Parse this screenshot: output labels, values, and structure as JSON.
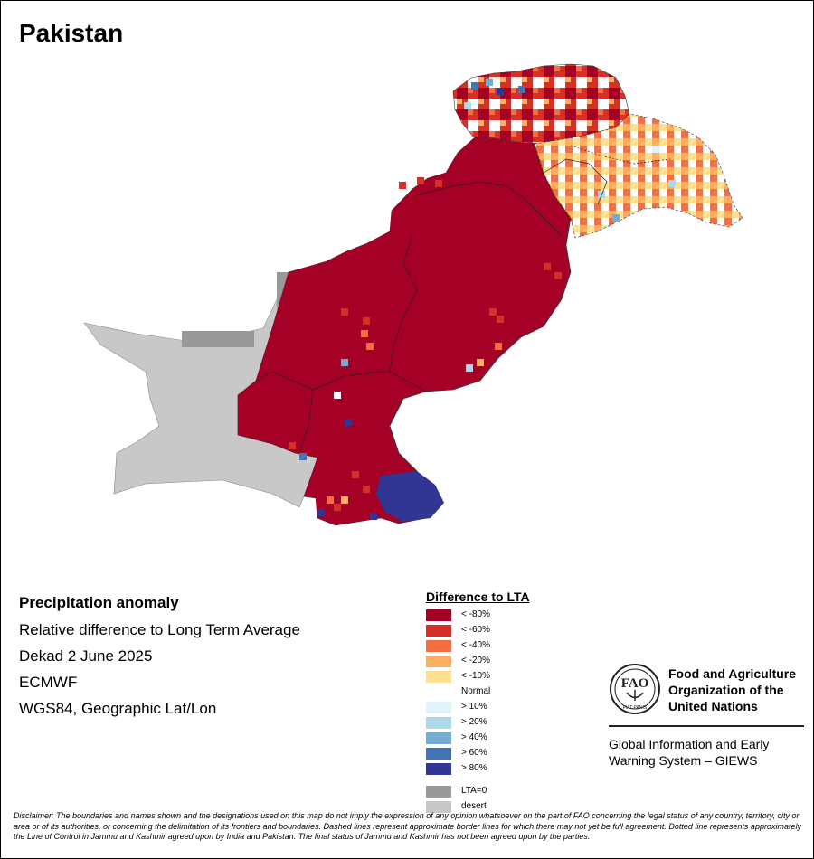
{
  "title": "Pakistan",
  "info": {
    "heading": "Precipitation anomaly",
    "line1": "Relative difference to Long Term Average",
    "line2": "Dekad 2 June 2025",
    "line3": "ECMWF",
    "line4": "WGS84, Geographic Lat/Lon"
  },
  "legend": {
    "title": "Difference to LTA",
    "items": [
      {
        "label": "< -80%",
        "color": "#a50026"
      },
      {
        "label": "< -60%",
        "color": "#d73027"
      },
      {
        "label": "< -40%",
        "color": "#f46d43"
      },
      {
        "label": "< -20%",
        "color": "#fdae61"
      },
      {
        "label": "< -10%",
        "color": "#fee090"
      },
      {
        "label": "Normal",
        "color": "#ffffff"
      },
      {
        "label": "> 10%",
        "color": "#e0f3f8"
      },
      {
        "label": "> 20%",
        "color": "#abd9e9"
      },
      {
        "label": "> 40%",
        "color": "#74add1"
      },
      {
        "label": "> 60%",
        "color": "#4575b4"
      },
      {
        "label": "> 80%",
        "color": "#313695"
      },
      {
        "label": "LTA=0",
        "color": "#999999"
      },
      {
        "label": "desert",
        "color": "#c8c8c8"
      }
    ]
  },
  "org": {
    "name_line1": "Food and Agriculture",
    "name_line2": "Organization of the",
    "name_line3": "United Nations",
    "system_line1": "Global Information and Early",
    "system_line2": "Warning System – GIEWS",
    "logo_text": "FAO",
    "logo_motto": "FIAT PANIS"
  },
  "disclaimer": "Disclaimer: The boundaries and names shown and the designations used on this map do not imply the expression of any opinion whatsoever on the part of FAO concerning the legal status of any country, territory, city or area or of its authorities, or concerning the delimitation of its frontiers and boundaries. Dashed lines represent approximate border lines for which there may not yet be full agreement. Dotted line represents approximately the Line of Control in Jammu and Kashmir agreed upon by India and Pakistan. The final status of Jammu and Kashmir has not been agreed upon by the parties."
}
